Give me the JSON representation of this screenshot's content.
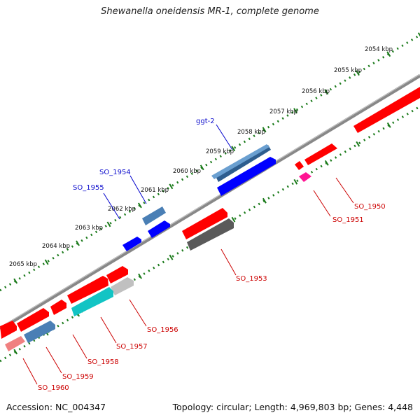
{
  "title": "Shewanella oneidensis MR-1, complete genome",
  "footer": {
    "accession": "Accession: NC_004347",
    "summary": "Topology: circular; Length: 4,969,803 bp; Genes: 4,448"
  },
  "scale_labels": [
    "2054 kbp",
    "2055 kbp",
    "2056 kbp",
    "2057 kbp",
    "2058 kbp",
    "2059 kbp",
    "2060 kbp",
    "2061 kbp",
    "2062 kbp",
    "2063 kbp",
    "2064 kbp",
    "2065 kbp"
  ],
  "gene_labels_top": [
    "ggt-2",
    "SO_1954",
    "SO_1955"
  ],
  "gene_labels_bottom": [
    "SO_1950",
    "SO_1951",
    "SO_1953",
    "SO_1956",
    "SO_1957",
    "SO_1958",
    "SO_1959",
    "SO_1960"
  ],
  "colors": {
    "backbone": "#888888",
    "scale_ticks": "#1a7a1a",
    "forward_label": "#0a0acc",
    "reverse_label": "#cc0000",
    "feature_red": "#ff0000",
    "feature_blue": "#0000ff",
    "feature_steel": "#4a7fb5",
    "feature_gray": "#5a5a5a",
    "feature_cyan": "#12c4c4",
    "feature_magenta": "#ff1493"
  }
}
